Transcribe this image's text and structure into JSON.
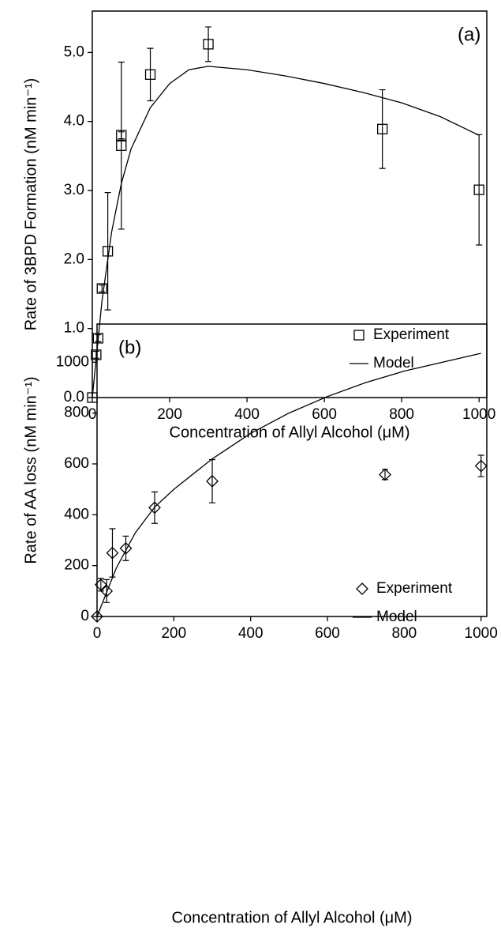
{
  "chart_data": [
    {
      "type": "scatter",
      "annotation": "(a)",
      "x_label": "Concentration of Allyl Alcohol (μM)",
      "y_label": "Rate of 3BPD Formation (nM min⁻¹)",
      "xlim": [
        0,
        1020
      ],
      "ylim": [
        0,
        5.6
      ],
      "xticks": [
        0,
        200,
        400,
        600,
        800,
        1000
      ],
      "yticks": [
        {
          "value": 0,
          "label": "0.0"
        },
        {
          "value": 1,
          "label": "1.0"
        },
        {
          "value": 2,
          "label": "2.0"
        },
        {
          "value": 3,
          "label": "3.0"
        },
        {
          "value": 4,
          "label": "4.0"
        },
        {
          "value": 5,
          "label": "5.0"
        }
      ],
      "series": [
        {
          "name": "Experiment",
          "color": "#000000",
          "marker": "square",
          "x": [
            0,
            10,
            15,
            25,
            40,
            75,
            75,
            150,
            300,
            750,
            1000
          ],
          "values": [
            0,
            0.62,
            0.86,
            1.58,
            2.12,
            3.8,
            3.65,
            4.68,
            5.12,
            3.89,
            3.01
          ],
          "errors": [
            0,
            0.05,
            0.05,
            0.05,
            0.85,
            0.05,
            1.21,
            0.38,
            0.25,
            0.57,
            0.8
          ]
        },
        {
          "name": "Model",
          "color": "#000000",
          "marker": "line",
          "x": [
            0,
            25,
            50,
            75,
            100,
            150,
            200,
            250,
            300,
            400,
            500,
            600,
            700,
            800,
            900,
            1000
          ],
          "values": [
            0,
            1.4,
            2.4,
            3.1,
            3.6,
            4.2,
            4.55,
            4.75,
            4.8,
            4.75,
            4.66,
            4.55,
            4.42,
            4.27,
            4.07,
            3.8
          ]
        }
      ]
    },
    {
      "type": "scatter",
      "annotation": "(b)",
      "x_label": "Concentration of Allyl Alcohol (μM)",
      "y_label": "Rate of AA loss (nM min⁻¹)",
      "xlim": [
        0,
        1015
      ],
      "ylim": [
        0,
        1150
      ],
      "xticks": [
        0,
        200,
        400,
        600,
        800,
        1000
      ],
      "yticks": [
        0,
        200,
        400,
        600,
        800,
        1000
      ],
      "series": [
        {
          "name": "Experiment",
          "color": "#000000",
          "marker": "diamond",
          "x": [
            0,
            10,
            25,
            40,
            75,
            150,
            300,
            750,
            1000
          ],
          "values": [
            0,
            125,
            100,
            250,
            268,
            428,
            532,
            558,
            592
          ],
          "errors": [
            0,
            25,
            45,
            95,
            48,
            62,
            85,
            20,
            42
          ]
        },
        {
          "name": "Model",
          "color": "#000000",
          "marker": "line",
          "x": [
            0,
            50,
            100,
            150,
            200,
            300,
            400,
            500,
            600,
            700,
            800,
            900,
            1000
          ],
          "values": [
            0,
            190,
            330,
            430,
            500,
            620,
            720,
            800,
            865,
            920,
            965,
            1000,
            1035
          ]
        }
      ]
    }
  ]
}
